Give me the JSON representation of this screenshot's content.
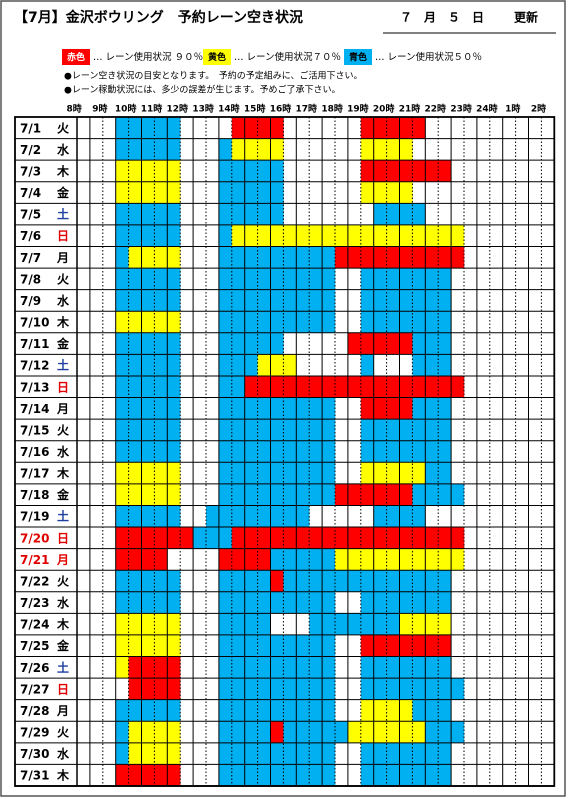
{
  "header": {
    "title": "【7月】金沢ボウリング　予約レーン空き状況",
    "updated_date": "７　月　５　日",
    "updated_label": "更新"
  },
  "legend": [
    {
      "key": "r",
      "name": "赤色",
      "text": "… レーン使用状況 ９０％",
      "color": "#ff0000",
      "text_color": "#ffffff"
    },
    {
      "key": "y",
      "name": "黄色",
      "text": "… レーン使用状況７０％",
      "color": "#ffff00",
      "text_color": "#000000"
    },
    {
      "key": "b",
      "name": "青色",
      "text": "… レーン使用状況５０％",
      "color": "#00b0f0",
      "text_color": "#000000"
    }
  ],
  "notes": [
    "●レーン空き状況の目安となります。　予約の予定組みに、ご活用下さい。",
    "●レーン稼動状況には、多少の誤差が生じます。予めご了承下さい。"
  ],
  "hours": [
    "8時",
    "9時",
    "10時",
    "11時",
    "12時",
    "13時",
    "14時",
    "15時",
    "16時",
    "17時",
    "18時",
    "19時",
    "20時",
    "21時",
    "22時",
    "23時",
    "24時",
    "1時",
    "2時"
  ],
  "rows": [
    {
      "date": "7/1",
      "day": "火",
      "cells": "...bbbbb....rrrr......rrrrr"
    },
    {
      "date": "7/2",
      "day": "水",
      "cells": "...bbbbb...byyyy......yyyy"
    },
    {
      "date": "7/3",
      "day": "木",
      "cells": "...yyyyy...bbbbb......rrrrrrr"
    },
    {
      "date": "7/4",
      "day": "金",
      "cells": "...yyyyy...bbbbb......yyyy"
    },
    {
      "date": "7/5",
      "day": "土",
      "day_color": "#1f3fa0",
      "cells": "...bbbbb...bbbbb.......bbbb"
    },
    {
      "date": "7/6",
      "day": "日",
      "day_color": "#e00000",
      "cells": "...bbbbb...byyyyyyyyyyyyyyyyyy"
    },
    {
      "date": "7/7",
      "day": "月",
      "cells": "...byyyy...bbbbbbbbbrrrrrrrrrr"
    },
    {
      "date": "7/8",
      "day": "火",
      "cells": "...bbbbb...bbbbbbbbb..bbbbbbb"
    },
    {
      "date": "7/9",
      "day": "水",
      "cells": "...bbbbb...bbbbbbbbb..bbbbbbb"
    },
    {
      "date": "7/10",
      "day": "木",
      "cells": "...yyyyy...bbbbbbbbb..bbbbbbb"
    },
    {
      "date": "7/11",
      "day": "金",
      "cells": "...bbbbb...bbbbb.....rrrrrbbb"
    },
    {
      "date": "7/12",
      "day": "土",
      "day_color": "#1f3fa0",
      "cells": "...bbbbb...bbbyyy.....b...bbb"
    },
    {
      "date": "7/13",
      "day": "日",
      "day_color": "#e00000",
      "cells": "...bbbbb...bbrrrrrrrrrrrrrrrrr"
    },
    {
      "date": "7/14",
      "day": "月",
      "cells": "...bbbbb...bbbbbbbbb..rrrrbbb"
    },
    {
      "date": "7/15",
      "day": "火",
      "cells": "...bbbbb...bbbbbbbbb..bbbbbbb"
    },
    {
      "date": "7/16",
      "day": "水",
      "cells": "...bbbbb...bbbbbbbbb..bbbbbbb"
    },
    {
      "date": "7/17",
      "day": "木",
      "cells": "...yyyyy...bbbbbbbbb..yyyyybb"
    },
    {
      "date": "7/18",
      "day": "金",
      "cells": "...yyyyy...bbbbbbbbbrrrrrrbbbb"
    },
    {
      "date": "7/19",
      "day": "土",
      "day_color": "#1f3fa0",
      "cells": "...bbbbb..bbbbbbbb.....bbbb"
    },
    {
      "date": "7/20",
      "day": "日",
      "date_color": "#e00000",
      "day_color": "#e00000",
      "cells": "...rrrrrrbbbrrrrrrrrrrrrrrrrrr"
    },
    {
      "date": "7/21",
      "day": "月",
      "date_color": "#e00000",
      "day_color": "#e00000",
      "cells": "...rrrr....rrrrbbbbbyyyyyyyyyy"
    },
    {
      "date": "7/22",
      "day": "火",
      "cells": "...bbbbb...bbbbrbbbbbbbbbbbbb"
    },
    {
      "date": "7/23",
      "day": "水",
      "cells": "...bbbbb...bbbbbbbbb..bbbbbbb"
    },
    {
      "date": "7/24",
      "day": "木",
      "cells": "...yyyyy...bbbb...bbbbbbbyyyy"
    },
    {
      "date": "7/25",
      "day": "金",
      "cells": "...yyyyy...bbbbbbbbb..rrrrrrr"
    },
    {
      "date": "7/26",
      "day": "土",
      "day_color": "#1f3fa0",
      "cells": "...yrrrr...bbbbbbbbb..bbbbbbb"
    },
    {
      "date": "7/27",
      "day": "日",
      "day_color": "#e00000",
      "cells": "....rrrr...bbbbbbbbb..bbbbbbbb"
    },
    {
      "date": "7/28",
      "day": "月",
      "cells": "...bbbbb...bbbbbbbbb..yyyybbb"
    },
    {
      "date": "7/29",
      "day": "火",
      "cells": "...byyyy...bbbbrbbbbbyyyyyybbb"
    },
    {
      "date": "7/30",
      "day": "水",
      "cells": "...byyyy...bbbbbbbbb..bbbbbbb"
    },
    {
      "date": "7/31",
      "day": "木",
      "cells": "...rrrrr...bbbbbbbbb..bbbbbbb"
    }
  ]
}
